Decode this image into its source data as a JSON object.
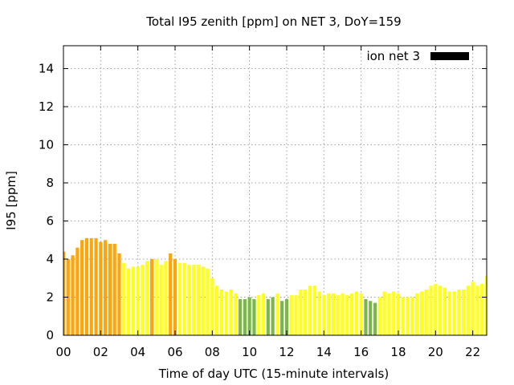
{
  "chart_data": {
    "type": "bar",
    "title": "Total I95 zenith [ppm] on NET 3, DoY=159",
    "xlabel": "Time of day UTC (15-minute intervals)",
    "ylabel": "I95 [ppm]",
    "legend": {
      "label": "ion net 3",
      "placement": "top-right",
      "color": "#000000"
    },
    "xlim": [
      0,
      22.75
    ],
    "ylim": [
      0,
      15.2
    ],
    "grid": true,
    "x_ticks": [
      "00",
      "02",
      "04",
      "06",
      "08",
      "10",
      "12",
      "14",
      "16",
      "18",
      "20",
      "22"
    ],
    "y_ticks": [
      "0",
      "2",
      "4",
      "6",
      "8",
      "10",
      "12",
      "14"
    ],
    "bar_interval_hours": 0.25,
    "values": [
      4.4,
      4.0,
      4.2,
      4.6,
      5.0,
      5.1,
      5.1,
      5.1,
      4.9,
      5.0,
      4.8,
      4.8,
      4.3,
      3.8,
      3.5,
      3.6,
      3.6,
      3.7,
      3.9,
      4.0,
      4.0,
      3.7,
      3.9,
      4.3,
      4.0,
      3.8,
      3.8,
      3.7,
      3.7,
      3.7,
      3.6,
      3.5,
      3.0,
      2.6,
      2.4,
      2.3,
      2.4,
      2.2,
      1.9,
      1.9,
      2.0,
      1.9,
      2.1,
      2.2,
      1.9,
      2.0,
      2.2,
      1.8,
      1.9,
      2.1,
      2.1,
      2.4,
      2.4,
      2.6,
      2.6,
      2.3,
      2.1,
      2.2,
      2.2,
      2.1,
      2.2,
      2.1,
      2.2,
      2.3,
      2.2,
      1.9,
      1.8,
      1.7,
      2.0,
      2.3,
      2.2,
      2.3,
      2.2,
      2.0,
      2.0,
      2.0,
      2.2,
      2.3,
      2.4,
      2.6,
      2.7,
      2.6,
      2.5,
      2.3,
      2.3,
      2.4,
      2.4,
      2.6,
      2.8,
      2.6,
      2.7,
      3.1
    ],
    "bar_colors": [
      "#ffa50a",
      "#ffa50a",
      "#ffa50a",
      "#ffa50a",
      "#ffa50a",
      "#ffa50a",
      "#ffa50a",
      "#ffa50a",
      "#ffa50a",
      "#ffa50a",
      "#ffa50a",
      "#ffa50a",
      "#ffa50a",
      "#ffff1a",
      "#ffff1a",
      "#ffff1a",
      "#ffff1a",
      "#ffff1a",
      "#ffff1a",
      "#ffa50a",
      "#ffff1a",
      "#ffff1a",
      "#ffff1a",
      "#ffa50a",
      "#ffa50a",
      "#ffff1a",
      "#ffff1a",
      "#ffff1a",
      "#ffff1a",
      "#ffff1a",
      "#ffff1a",
      "#ffff1a",
      "#ffff1a",
      "#ffff1a",
      "#ffff1a",
      "#ffff1a",
      "#ffff1a",
      "#ffff1a",
      "#7ab648",
      "#7ab648",
      "#7ab648",
      "#7ab648",
      "#ffff1a",
      "#ffff1a",
      "#7ab648",
      "#7ab648",
      "#ffff1a",
      "#7ab648",
      "#7ab648",
      "#ffff1a",
      "#ffff1a",
      "#ffff1a",
      "#ffff1a",
      "#ffff1a",
      "#ffff1a",
      "#ffff1a",
      "#ffff1a",
      "#ffff1a",
      "#ffff1a",
      "#ffff1a",
      "#ffff1a",
      "#ffff1a",
      "#ffff1a",
      "#ffff1a",
      "#ffff1a",
      "#7ab648",
      "#7ab648",
      "#7ab648",
      "#ffff1a",
      "#ffff1a",
      "#ffff1a",
      "#ffff1a",
      "#ffff1a",
      "#ffff1a",
      "#ffff1a",
      "#ffff1a",
      "#ffff1a",
      "#ffff1a",
      "#ffff1a",
      "#ffff1a",
      "#ffff1a",
      "#ffff1a",
      "#ffff1a",
      "#ffff1a",
      "#ffff1a",
      "#ffff1a",
      "#ffff1a",
      "#ffff1a",
      "#ffff1a",
      "#ffff1a",
      "#ffff1a",
      "#ffff1a"
    ]
  }
}
